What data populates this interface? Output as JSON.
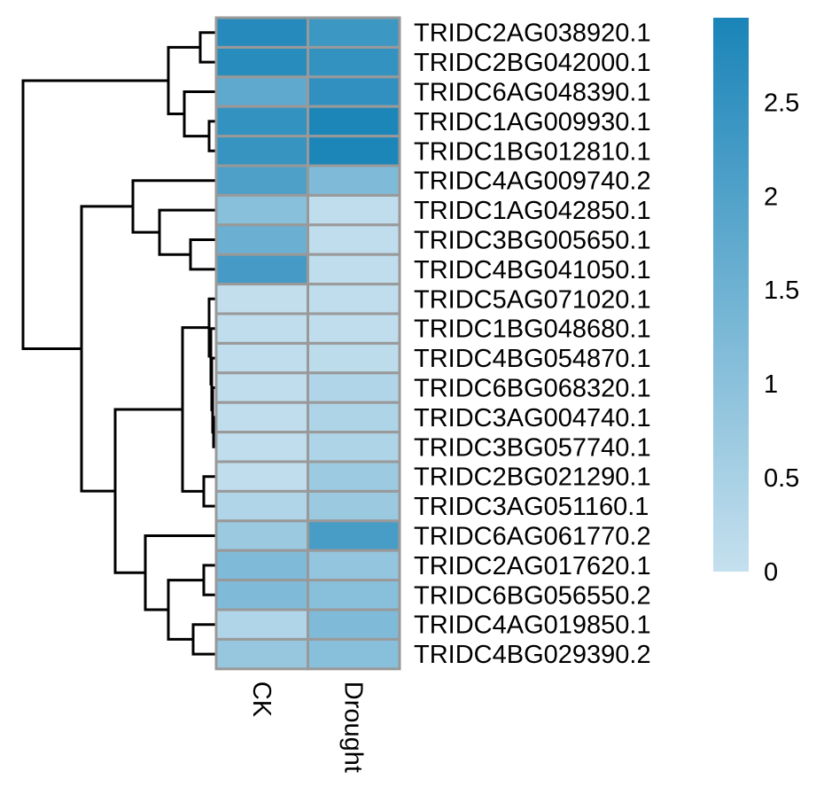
{
  "chart_data": {
    "type": "heatmap",
    "title": "",
    "columns": [
      "CK",
      "Drought"
    ],
    "rows": [
      "TRIDC2AG038920.1",
      "TRIDC2BG042000.1",
      "TRIDC6AG048390.1",
      "TRIDC1AG009930.1",
      "TRIDC1BG012810.1",
      "TRIDC4AG009740.2",
      "TRIDC1AG042850.1",
      "TRIDC3BG005650.1",
      "TRIDC4BG041050.1",
      "TRIDC5AG071020.1",
      "TRIDC1BG048680.1",
      "TRIDC4BG054870.1",
      "TRIDC6BG068320.1",
      "TRIDC3AG004740.1",
      "TRIDC3BG057740.1",
      "TRIDC2BG021290.1",
      "TRIDC3AG051160.1",
      "TRIDC6AG061770.2",
      "TRIDC2AG017620.1",
      "TRIDC6BG056550.2",
      "TRIDC4AG019850.1",
      "TRIDC4BG029390.2"
    ],
    "values": [
      [
        2.75,
        2.35
      ],
      [
        2.7,
        2.5
      ],
      [
        1.75,
        2.55
      ],
      [
        2.5,
        2.9
      ],
      [
        2.45,
        2.9
      ],
      [
        2.05,
        1.2
      ],
      [
        1.05,
        0.1
      ],
      [
        1.55,
        0.1
      ],
      [
        2.2,
        0.1
      ],
      [
        0.05,
        0.1
      ],
      [
        0.1,
        0.1
      ],
      [
        0.1,
        0.15
      ],
      [
        0.1,
        0.35
      ],
      [
        0.1,
        0.4
      ],
      [
        0.1,
        0.4
      ],
      [
        0.1,
        0.7
      ],
      [
        0.35,
        0.75
      ],
      [
        0.75,
        2.15
      ],
      [
        1.2,
        0.85
      ],
      [
        1.2,
        1.05
      ],
      [
        0.35,
        1.2
      ],
      [
        0.8,
        1.05
      ]
    ],
    "color_scale": {
      "min": 0,
      "max": 2.95,
      "low_color": "#c5e0ee",
      "high_color": "#1a84b8",
      "ticks": [
        "0",
        "0.5",
        "1",
        "1.5",
        "2",
        "2.5"
      ],
      "tick_values": [
        0,
        0.5,
        1,
        1.5,
        2,
        2.5
      ]
    },
    "row_dendrogram": true,
    "legend": "right"
  }
}
